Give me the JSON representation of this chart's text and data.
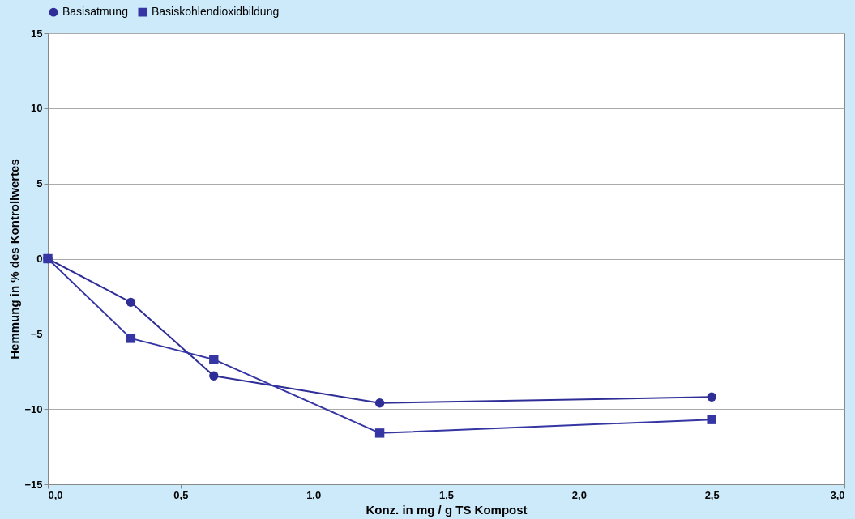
{
  "chart_data": {
    "type": "line",
    "xlabel": "Konz. in mg / g TS Kompost",
    "ylabel": "Hemmung in % des Kontrollwertes",
    "x": [
      0,
      0.3125,
      0.625,
      1.25,
      2.5
    ],
    "series": [
      {
        "name": "Basisatmung",
        "color": "#2e2e96",
        "marker": "circle",
        "values": [
          0,
          -2.9,
          -7.8,
          -9.6,
          -9.2
        ]
      },
      {
        "name": "Basiskohlendioxidbildung",
        "color": "#3535a3",
        "marker": "square",
        "values": [
          0,
          -5.3,
          -6.7,
          -11.6,
          -10.7
        ]
      }
    ],
    "xlim": [
      0,
      3
    ],
    "xticks": [
      {
        "value": 0,
        "label": "0,0"
      },
      {
        "value": 0.5,
        "label": "0,5"
      },
      {
        "value": 1,
        "label": "1,0"
      },
      {
        "value": 1.5,
        "label": "1,5"
      },
      {
        "value": 2,
        "label": "2,0"
      },
      {
        "value": 2.5,
        "label": "2,5"
      },
      {
        "value": 3,
        "label": "3,0"
      }
    ],
    "ylim": [
      -15,
      15
    ],
    "yticks": [
      -15,
      -10,
      -5,
      0,
      5,
      10,
      15
    ],
    "grid": "y",
    "legend": "top",
    "line_style": "solid"
  }
}
